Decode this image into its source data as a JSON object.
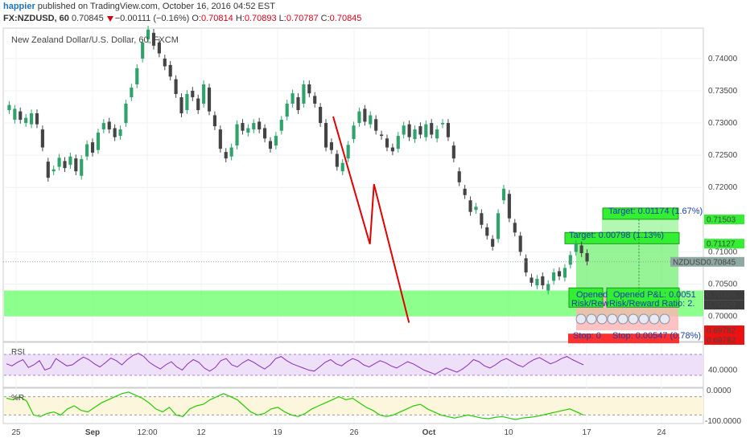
{
  "header": {
    "user": "happier",
    "published_text": " published on TradingView.com, October 16, 2016 04:52 EST",
    "symbol": "FX:NZDUSD, 60",
    "last": "0.70845",
    "change": "−0.00111 (−0.16%)",
    "open_label": "O:",
    "open": "0.70814",
    "high_label": "H:",
    "high": "0.70893",
    "low_label": "L:",
    "low": "0.70787",
    "close_label": "C:",
    "close": "0.70845"
  },
  "chart_data": {
    "type": "candlestick",
    "title": "New Zealand Dollar/U.S. Dollar, 60, FXCM",
    "ylim": [
      0.6962,
      0.7446
    ],
    "y_ticks": [
      {
        "value": 0.74,
        "label": "0.74000"
      },
      {
        "value": 0.735,
        "label": "0.73500"
      },
      {
        "value": 0.73,
        "label": "0.73000"
      },
      {
        "value": 0.725,
        "label": "0.72500"
      },
      {
        "value": 0.72,
        "label": "0.72000"
      },
      {
        "value": 0.71,
        "label": "0.71000"
      },
      {
        "value": 0.705,
        "label": "0.70500"
      },
      {
        "value": 0.7,
        "label": "0.70000"
      }
    ],
    "x_ticks": [
      "25",
      "Sep",
      "12:00",
      "12",
      "19",
      "26",
      "Oct",
      "10",
      "17",
      "24"
    ],
    "price_labels": [
      {
        "label": "0.71503",
        "value": 0.71503,
        "color": "#33ee33",
        "text_color": "#000000"
      },
      {
        "label": "0.71127",
        "value": 0.71127,
        "color": "#33ee33",
        "text_color": "#000000"
      },
      {
        "label": "0.70845",
        "value": 0.70845,
        "color": "#8fa8a2",
        "text_color": "#ffffff"
      },
      {
        "label": "0.70329",
        "value": 0.70329,
        "color": "#3b3b3b",
        "text_color": "#ffffff"
      },
      {
        "label": "0.70329",
        "value": 0.70329,
        "color": "#3b3b3b",
        "text_color": "#ffffff"
      },
      {
        "label": "0.69782",
        "value": 0.69782,
        "color": "#ee1111",
        "text_color": "#ffffff"
      },
      {
        "label": "0.69782",
        "value": 0.69782,
        "color": "#ee1111",
        "text_color": "#ffffff"
      }
    ],
    "symbol_label": "NZDUSD",
    "last_price": 0.70845,
    "support_zone": [
      0.7,
      0.704
    ],
    "price_path": [
      [
        0.732,
        0.7328
      ],
      [
        0.7305,
        0.7322
      ],
      [
        0.7318,
        0.7305
      ],
      [
        0.73,
        0.7308
      ],
      [
        0.7298,
        0.7315
      ],
      [
        0.7315,
        0.7298
      ],
      [
        0.729,
        0.7262
      ],
      [
        0.724,
        0.7215
      ],
      [
        0.7225,
        0.7228
      ],
      [
        0.7232,
        0.7246
      ],
      [
        0.7241,
        0.723
      ],
      [
        0.7235,
        0.7248
      ],
      [
        0.7245,
        0.7225
      ],
      [
        0.7218,
        0.7244
      ],
      [
        0.7248,
        0.7267
      ],
      [
        0.727,
        0.7254
      ],
      [
        0.7258,
        0.7285
      ],
      [
        0.729,
        0.73
      ],
      [
        0.7302,
        0.729
      ],
      [
        0.7292,
        0.7278
      ],
      [
        0.728,
        0.729
      ],
      [
        0.73,
        0.733
      ],
      [
        0.734,
        0.7355
      ],
      [
        0.736,
        0.7385
      ],
      [
        0.74,
        0.7425
      ],
      [
        0.743,
        0.7445
      ],
      [
        0.744,
        0.742
      ],
      [
        0.7425,
        0.7408
      ],
      [
        0.74,
        0.7388
      ],
      [
        0.739,
        0.7372
      ],
      [
        0.7368,
        0.7345
      ],
      [
        0.734,
        0.7315
      ],
      [
        0.732,
        0.7345
      ],
      [
        0.735,
        0.734
      ],
      [
        0.7338,
        0.732
      ],
      [
        0.733,
        0.736
      ],
      [
        0.7355,
        0.7318
      ],
      [
        0.7312,
        0.7295
      ],
      [
        0.729,
        0.726
      ],
      [
        0.7255,
        0.7245
      ],
      [
        0.7248,
        0.7262
      ],
      [
        0.7265,
        0.7298
      ],
      [
        0.73,
        0.7288
      ],
      [
        0.7285,
        0.7292
      ],
      [
        0.729,
        0.73
      ],
      [
        0.7302,
        0.729
      ],
      [
        0.7292,
        0.7276
      ],
      [
        0.7272,
        0.726
      ],
      [
        0.7265,
        0.728
      ],
      [
        0.7288,
        0.7305
      ],
      [
        0.731,
        0.733
      ],
      [
        0.733,
        0.7346
      ],
      [
        0.734,
        0.732
      ],
      [
        0.733,
        0.736
      ],
      [
        0.736,
        0.7346
      ],
      [
        0.7342,
        0.733
      ],
      [
        0.7325,
        0.73
      ],
      [
        0.73,
        0.7262
      ],
      [
        0.727,
        0.7258
      ],
      [
        0.7252,
        0.7232
      ],
      [
        0.7225,
        0.7238
      ],
      [
        0.7245,
        0.7266
      ],
      [
        0.7275,
        0.7296
      ],
      [
        0.73,
        0.7318
      ],
      [
        0.7322,
        0.7302
      ],
      [
        0.7298,
        0.7312
      ],
      [
        0.7306,
        0.7288
      ],
      [
        0.7282,
        0.728
      ],
      [
        0.7276,
        0.7262
      ],
      [
        0.7262,
        0.7256
      ],
      [
        0.726,
        0.728
      ],
      [
        0.7282,
        0.7296
      ],
      [
        0.7298,
        0.7278
      ],
      [
        0.7275,
        0.729
      ],
      [
        0.7295,
        0.7282
      ],
      [
        0.7278,
        0.7298
      ],
      [
        0.73,
        0.7282
      ],
      [
        0.7276,
        0.729
      ],
      [
        0.7298,
        0.73
      ],
      [
        0.73,
        0.7278
      ],
      [
        0.7265,
        0.7245
      ],
      [
        0.7225,
        0.7208
      ],
      [
        0.7198,
        0.7188
      ],
      [
        0.718,
        0.7162
      ],
      [
        0.7165,
        0.717
      ],
      [
        0.716,
        0.7142
      ],
      [
        0.7138,
        0.7125
      ],
      [
        0.712,
        0.7108
      ],
      [
        0.712,
        0.716
      ],
      [
        0.718,
        0.7198
      ],
      [
        0.719,
        0.7152
      ],
      [
        0.7145,
        0.713
      ],
      [
        0.7125,
        0.71
      ],
      [
        0.709,
        0.7068
      ],
      [
        0.706,
        0.7052
      ],
      [
        0.7048,
        0.7058
      ],
      [
        0.7062,
        0.7048
      ],
      [
        0.704,
        0.705
      ],
      [
        0.7055,
        0.7068
      ],
      [
        0.707,
        0.7062
      ],
      [
        0.706,
        0.7075
      ],
      [
        0.708,
        0.7095
      ],
      [
        0.71,
        0.7112
      ],
      [
        0.711,
        0.7098
      ],
      [
        0.7098,
        0.7085
      ]
    ],
    "rsi": {
      "label": "RSI",
      "y_label": "40.0000",
      "band": [
        30,
        70
      ],
      "values": [
        52,
        48,
        55,
        60,
        45,
        50,
        58,
        40,
        44,
        62,
        55,
        48,
        50,
        58,
        65,
        60,
        52,
        46,
        54,
        63,
        58,
        50,
        60,
        68,
        72,
        66,
        55,
        48,
        42,
        50,
        56,
        46,
        40,
        52,
        60,
        55,
        44,
        38,
        45,
        58,
        62,
        50,
        46,
        54,
        60,
        55,
        48,
        42,
        50,
        62,
        66,
        58,
        52,
        48,
        44,
        40,
        38,
        46,
        55,
        60,
        52,
        48,
        56,
        62,
        58,
        50,
        46,
        52,
        58,
        54,
        48,
        44,
        50,
        56,
        52,
        46,
        40,
        36,
        32,
        38,
        44,
        40,
        36,
        42,
        50,
        60,
        56,
        48,
        44,
        50,
        58,
        62,
        56,
        50,
        46,
        54,
        60,
        64,
        58,
        52,
        56,
        62,
        66,
        60,
        55,
        50
      ]
    },
    "pctr": {
      "label": "%R",
      "y_top_label": "0.0000",
      "y_bottom_label": "-100.0000",
      "values": [
        -25,
        -30,
        -20,
        -35,
        -80,
        -85,
        -75,
        -70,
        -80,
        -60,
        -50,
        -65,
        -70,
        -55,
        -40,
        -30,
        -20,
        -10,
        -5,
        -15,
        -25,
        -40,
        -60,
        -70,
        -55,
        -80,
        -85,
        -60,
        -50,
        -45,
        -30,
        -20,
        -10,
        -20,
        -30,
        -50,
        -70,
        -80,
        -75,
        -60,
        -55,
        -70,
        -80,
        -85,
        -75,
        -60,
        -50,
        -40,
        -30,
        -20,
        -30,
        -25,
        -40,
        -55,
        -65,
        -80,
        -85,
        -80,
        -70,
        -60,
        -50,
        -45,
        -60,
        -70,
        -80,
        -85,
        -90,
        -85,
        -80,
        -85,
        -90,
        -92,
        -88,
        -85,
        -90,
        -95,
        -90,
        -88,
        -85,
        -80,
        -75,
        -70,
        -65,
        -60,
        -70,
        -80
      ]
    },
    "trend_lines": [
      {
        "from": [
          0.56,
          0.731
        ],
        "to": [
          0.623,
          0.7112
        ],
        "color": "#e00000"
      },
      {
        "from": [
          0.623,
          0.7112
        ],
        "to": [
          0.63,
          0.7205
        ],
        "color": "#e00000"
      },
      {
        "from": [
          0.63,
          0.7205
        ],
        "to": [
          0.69,
          0.699
        ],
        "color": "#e00000"
      }
    ]
  },
  "positions": {
    "target1": "Target: 0.01174 (1.67%)",
    "target2": "Target: 0.00798 (1.13%)",
    "opened1": "Opened",
    "riskrev1": "Risk/Rew",
    "opened2": "Opened P&L: 0.0051",
    "riskrev2": "Risk/Reward Ratio: 2.",
    "stop1": "Stop: 0",
    "stop2": "Stop: 0.00547 (0.78%)"
  },
  "colors": {
    "bull_candle": "#2fa36b",
    "bear_candle": "#444444",
    "trend": "#e00000",
    "zone": "#66ff66",
    "rsi_line": "#8b2bb9",
    "rsi_band": "#efe0fa",
    "pctr_line": "#22cc00",
    "pctr_band": "#fbf6dc"
  }
}
